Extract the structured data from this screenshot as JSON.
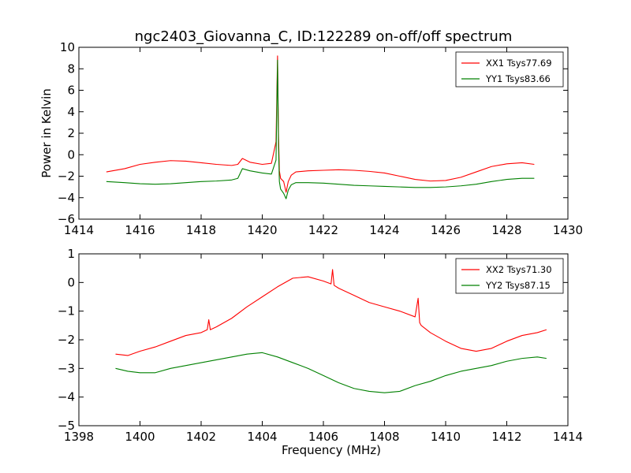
{
  "chart_data": [
    {
      "type": "line",
      "title": "ngc2403_Giovanna_C, ID:122289 on-off/off spectrum",
      "xlabel": "",
      "ylabel": "Power in Kelvin",
      "xlim": [
        1414,
        1430
      ],
      "ylim": [
        -6,
        10
      ],
      "xticks": [
        1414,
        1416,
        1418,
        1420,
        1422,
        1424,
        1426,
        1428,
        1430
      ],
      "yticks": [
        -6,
        -4,
        -2,
        0,
        2,
        4,
        6,
        8,
        10
      ],
      "grid": false,
      "legend": "top-right",
      "series": [
        {
          "name": "XX1 Tsys77.69",
          "color": "#ff0000",
          "x": [
            1414.9,
            1415.5,
            1416.0,
            1416.5,
            1417.0,
            1417.5,
            1418.0,
            1418.5,
            1419.0,
            1419.2,
            1419.35,
            1419.6,
            1420.0,
            1420.3,
            1420.45,
            1420.5,
            1420.53,
            1420.56,
            1420.6,
            1420.7,
            1420.78,
            1420.85,
            1420.95,
            1421.1,
            1421.5,
            1422.0,
            1422.5,
            1423.0,
            1423.5,
            1424.0,
            1424.5,
            1425.0,
            1425.5,
            1426.0,
            1426.5,
            1427.0,
            1427.5,
            1428.0,
            1428.5,
            1428.9
          ],
          "y": [
            -1.6,
            -1.3,
            -0.9,
            -0.7,
            -0.55,
            -0.6,
            -0.75,
            -0.9,
            -1.0,
            -0.9,
            -0.35,
            -0.7,
            -0.9,
            -0.8,
            1.2,
            9.2,
            2.0,
            -1.5,
            -2.2,
            -2.5,
            -3.5,
            -2.5,
            -1.9,
            -1.6,
            -1.5,
            -1.45,
            -1.4,
            -1.45,
            -1.55,
            -1.7,
            -2.0,
            -2.3,
            -2.45,
            -2.4,
            -2.1,
            -1.6,
            -1.1,
            -0.85,
            -0.75,
            -0.9
          ]
        },
        {
          "name": "YY1 Tsys83.66",
          "color": "#008000",
          "x": [
            1414.9,
            1415.5,
            1416.0,
            1416.5,
            1417.0,
            1417.5,
            1418.0,
            1418.5,
            1419.0,
            1419.2,
            1419.35,
            1419.6,
            1420.0,
            1420.3,
            1420.45,
            1420.5,
            1420.53,
            1420.56,
            1420.6,
            1420.7,
            1420.78,
            1420.85,
            1420.95,
            1421.1,
            1421.5,
            1422.0,
            1422.5,
            1423.0,
            1423.5,
            1424.0,
            1424.5,
            1425.0,
            1425.5,
            1426.0,
            1426.5,
            1427.0,
            1427.5,
            1428.0,
            1428.5,
            1428.9
          ],
          "y": [
            -2.5,
            -2.6,
            -2.7,
            -2.75,
            -2.7,
            -2.6,
            -2.5,
            -2.45,
            -2.35,
            -2.2,
            -1.3,
            -1.5,
            -1.7,
            -1.8,
            -0.5,
            8.8,
            1.0,
            -2.5,
            -3.2,
            -3.6,
            -4.1,
            -3.3,
            -2.8,
            -2.6,
            -2.6,
            -2.65,
            -2.75,
            -2.85,
            -2.9,
            -2.95,
            -3.0,
            -3.05,
            -3.05,
            -3.0,
            -2.9,
            -2.75,
            -2.5,
            -2.3,
            -2.2,
            -2.2
          ]
        }
      ]
    },
    {
      "type": "line",
      "title": "",
      "xlabel": "Frequency (MHz)",
      "ylabel": "",
      "xlim": [
        1398,
        1414
      ],
      "ylim": [
        -5,
        1
      ],
      "xticks": [
        1398,
        1400,
        1402,
        1404,
        1406,
        1408,
        1410,
        1412,
        1414
      ],
      "yticks": [
        -5,
        -4,
        -3,
        -2,
        -1,
        0,
        1
      ],
      "grid": false,
      "legend": "top-right",
      "series": [
        {
          "name": "XX2 Tsys71.30",
          "color": "#ff0000",
          "x": [
            1399.2,
            1399.6,
            1400.0,
            1400.5,
            1401.0,
            1401.5,
            1402.0,
            1402.2,
            1402.25,
            1402.3,
            1402.5,
            1403.0,
            1403.5,
            1404.0,
            1404.5,
            1405.0,
            1405.5,
            1406.0,
            1406.25,
            1406.3,
            1406.35,
            1406.5,
            1407.0,
            1407.5,
            1408.0,
            1408.5,
            1409.0,
            1409.1,
            1409.15,
            1409.2,
            1409.5,
            1410.0,
            1410.5,
            1411.0,
            1411.5,
            1412.0,
            1412.5,
            1413.0,
            1413.3
          ],
          "y": [
            -2.5,
            -2.55,
            -2.4,
            -2.25,
            -2.05,
            -1.85,
            -1.75,
            -1.65,
            -1.3,
            -1.65,
            -1.55,
            -1.25,
            -0.85,
            -0.5,
            -0.15,
            0.15,
            0.2,
            0.05,
            -0.05,
            0.45,
            -0.1,
            -0.2,
            -0.45,
            -0.7,
            -0.85,
            -1.0,
            -1.2,
            -0.55,
            -1.4,
            -1.5,
            -1.75,
            -2.05,
            -2.3,
            -2.4,
            -2.3,
            -2.05,
            -1.85,
            -1.75,
            -1.65
          ]
        },
        {
          "name": "YY2 Tsys87.15",
          "color": "#008000",
          "x": [
            1399.2,
            1399.6,
            1400.0,
            1400.5,
            1401.0,
            1401.5,
            1402.0,
            1402.5,
            1403.0,
            1403.5,
            1404.0,
            1404.5,
            1405.0,
            1405.5,
            1406.0,
            1406.5,
            1407.0,
            1407.5,
            1408.0,
            1408.5,
            1409.0,
            1409.5,
            1410.0,
            1410.5,
            1411.0,
            1411.5,
            1412.0,
            1412.5,
            1413.0,
            1413.3
          ],
          "y": [
            -3.0,
            -3.1,
            -3.15,
            -3.15,
            -3.0,
            -2.9,
            -2.8,
            -2.7,
            -2.6,
            -2.5,
            -2.45,
            -2.6,
            -2.8,
            -3.0,
            -3.25,
            -3.5,
            -3.7,
            -3.8,
            -3.85,
            -3.8,
            -3.6,
            -3.45,
            -3.25,
            -3.1,
            -3.0,
            -2.9,
            -2.75,
            -2.65,
            -2.6,
            -2.65
          ]
        }
      ]
    }
  ]
}
